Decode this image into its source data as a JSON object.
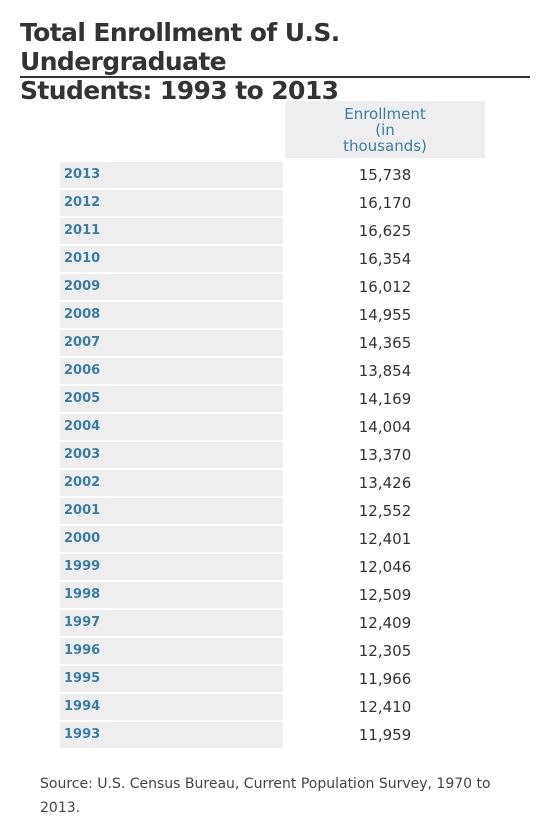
{
  "title": "Total Enrollment of U.S. Undergraduate\nStudents: 1993 to 2013",
  "colors": {
    "accent": "#3a7fa3",
    "cell_background": "#eeeeee",
    "text": "#333333"
  },
  "chart_data": {
    "type": "table",
    "title": "Total Enrollment of U.S. Undergraduate Students: 1993 to 2013",
    "column_header": "Enrollment\n(in\nthousands)",
    "rows": [
      {
        "year": "2013",
        "enrollment": "15,738"
      },
      {
        "year": "2012",
        "enrollment": "16,170"
      },
      {
        "year": "2011",
        "enrollment": "16,625"
      },
      {
        "year": "2010",
        "enrollment": "16,354"
      },
      {
        "year": "2009",
        "enrollment": "16,012"
      },
      {
        "year": "2008",
        "enrollment": "14,955"
      },
      {
        "year": "2007",
        "enrollment": "14,365"
      },
      {
        "year": "2006",
        "enrollment": "13,854"
      },
      {
        "year": "2005",
        "enrollment": "14,169"
      },
      {
        "year": "2004",
        "enrollment": "14,004"
      },
      {
        "year": "2003",
        "enrollment": "13,370"
      },
      {
        "year": "2002",
        "enrollment": "13,426"
      },
      {
        "year": "2001",
        "enrollment": "12,552"
      },
      {
        "year": "2000",
        "enrollment": "12,401"
      },
      {
        "year": "1999",
        "enrollment": "12,046"
      },
      {
        "year": "1998",
        "enrollment": "12,509"
      },
      {
        "year": "1997",
        "enrollment": "12,409"
      },
      {
        "year": "1996",
        "enrollment": "12,305"
      },
      {
        "year": "1995",
        "enrollment": "11,966"
      },
      {
        "year": "1994",
        "enrollment": "12,410"
      },
      {
        "year": "1993",
        "enrollment": "11,959"
      }
    ]
  },
  "source": "Source:  U.S. Census Bureau, Current Population Survey, 1970 to 2013."
}
